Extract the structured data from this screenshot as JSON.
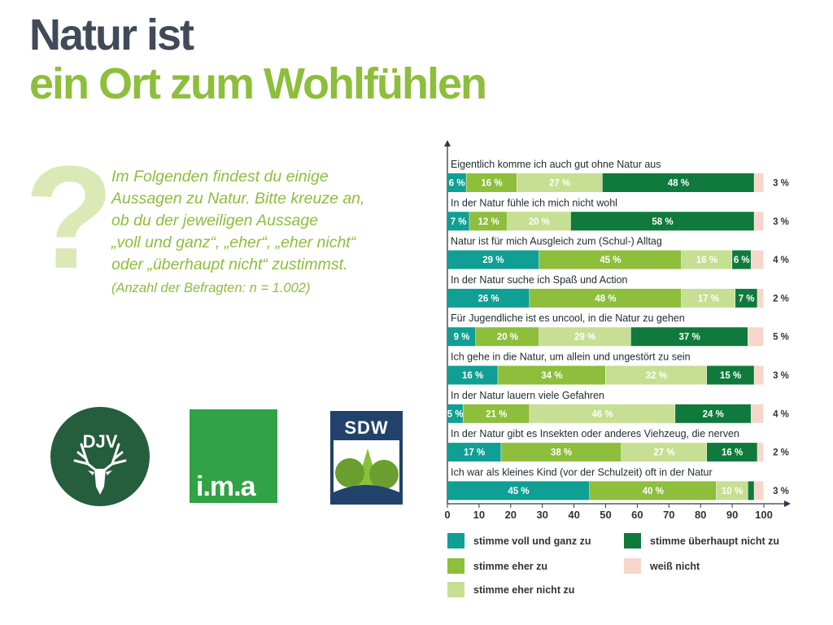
{
  "title": {
    "line1": "Natur ist",
    "line2": "ein Ort zum Wohlfühlen"
  },
  "question_mark": "?",
  "intro": {
    "lines": [
      "Im Folgenden findest du einige",
      "Aussagen zu Natur. Bitte kreuze an,",
      "ob du der jeweiligen Aussage",
      "„voll und ganz“, „eher“, „eher nicht“",
      "oder „überhaupt nicht“ zustimmst."
    ],
    "sample": "(Anzahl der Befragten: n = 1.002)"
  },
  "logos": {
    "djv": "DJV",
    "ima": "i.m.a",
    "sdw": "SDW"
  },
  "colors": {
    "voll": "#109f94",
    "eher": "#8dbe3c",
    "eher_nicht": "#c6df92",
    "ueberhaupt_nicht": "#0f7a3c",
    "weiss_nicht": "#f7d7cb"
  },
  "chart_data": {
    "type": "bar",
    "orientation": "horizontal",
    "stacked": true,
    "xlim": [
      0,
      100
    ],
    "xticks": [
      0,
      10,
      20,
      30,
      40,
      50,
      60,
      70,
      80,
      90,
      100
    ],
    "categories": [
      "Eigentlich komme ich auch gut ohne Natur aus",
      "In der Natur fühle ich mich nicht wohl",
      "Natur ist für mich Ausgleich zum (Schul-) Alltag",
      "In der Natur suche ich Spaß und Action",
      "Für Jugendliche ist es uncool, in die Natur zu gehen",
      "Ich gehe in die Natur, um allein und ungestört zu sein",
      "In der Natur lauern viele Gefahren",
      "In der Natur gibt es Insekten oder anderes Viehzeug, die nerven",
      "Ich war als kleines Kind (vor der Schulzeit) oft in der Natur"
    ],
    "series": [
      {
        "name": "stimme voll und ganz zu",
        "color": "#109f94",
        "values": [
          6,
          7,
          29,
          26,
          9,
          16,
          5,
          17,
          45
        ],
        "labels": [
          "6 %",
          "7 %",
          "29 %",
          "26 %",
          "9 %",
          "16 %",
          "5 %",
          "17 %",
          "45 %"
        ]
      },
      {
        "name": "stimme eher zu",
        "color": "#8dbe3c",
        "values": [
          16,
          12,
          45,
          48,
          20,
          34,
          21,
          38,
          40
        ],
        "labels": [
          "16 %",
          "12 %",
          "45 %",
          "48 %",
          "20 %",
          "34 %",
          "21 %",
          "38 %",
          "40 %"
        ]
      },
      {
        "name": "stimme eher nicht zu",
        "color": "#c6df92",
        "values": [
          27,
          20,
          16,
          17,
          29,
          32,
          46,
          27,
          10
        ],
        "labels": [
          "27 %",
          "20 %",
          "16 %",
          "17 %",
          "29 %",
          "32 %",
          "46 %",
          "27 %",
          "10 %"
        ]
      },
      {
        "name": "stimme überhaupt nicht zu",
        "color": "#0f7a3c",
        "values": [
          48,
          58,
          6,
          7,
          37,
          15,
          24,
          16,
          2
        ],
        "labels": [
          "48 %",
          "58 %",
          "6 %",
          "7 %",
          "37 %",
          "15 %",
          "24 %",
          "16 %",
          ""
        ]
      },
      {
        "name": "weiß nicht",
        "color": "#f7d7cb",
        "values": [
          3,
          3,
          4,
          2,
          5,
          3,
          4,
          2,
          3
        ],
        "labels": [
          "3 %",
          "3 %",
          "4 %",
          "2 %",
          "5 %",
          "3 %",
          "4 %",
          "2 %",
          "3 %"
        ]
      }
    ],
    "legend_position": "bottom",
    "grid": false
  }
}
